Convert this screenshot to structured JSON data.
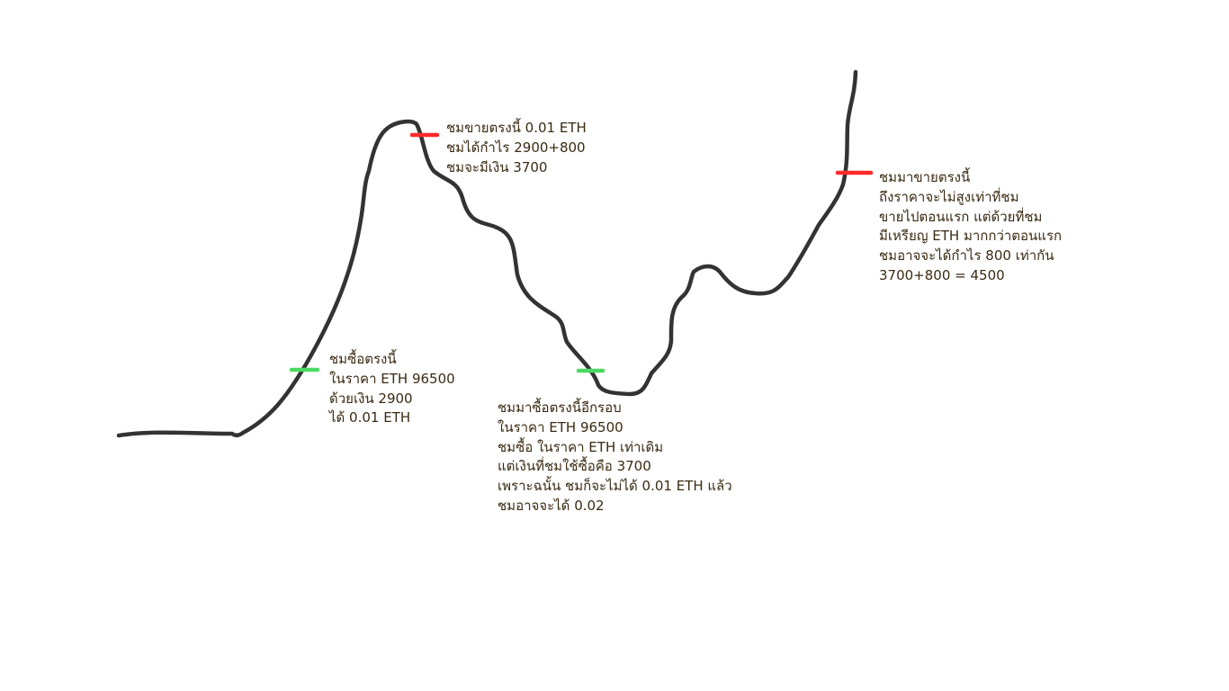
{
  "notes": {
    "buy_first": {
      "lines": [
        "ชมซื้อตรงนี้",
        "ในราคา ETH 96500",
        "ด้วยเงิน 2900",
        "ได้ 0.01 ETH"
      ]
    },
    "sell_first": {
      "lines": [
        "ชมขายตรงนี้ 0.01 ETH",
        "ชมได้กำไร 2900+800",
        "ชมจะมีเงิน 3700"
      ]
    },
    "buy_again": {
      "lines": [
        "ชมมาซื้อตรงนี้อีกรอบ",
        "ในราคา ETH 96500",
        "ชมซื้อ ในราคา ETH เท่าเดิม",
        "แต่เงินที่ชมใช้ซื้อคือ 3700",
        "เพราะฉนั้น ชมก็จะไม่ได้ 0.01 ETH แล้ว",
        "ชมอาจจะได้ 0.02"
      ]
    },
    "sell_again": {
      "lines": [
        "ชมมาขายตรงนี้",
        "ถึงราคาจะไม่สูงเท่าที่ชม",
        "ขายไปตอนแรก แต่ด้วยที่ชม",
        "มีเหรียญ ETH มากกว่าตอนแรก",
        "ชมอาจจะได้กำไร 800 เท่ากัน",
        "3700+800 = 4500"
      ]
    }
  },
  "colors": {
    "curve": "#333333",
    "buy_marker": "#4cd964",
    "sell_marker": "#ff2a2a",
    "text": "#3a2a12",
    "background": "#ffffff"
  }
}
